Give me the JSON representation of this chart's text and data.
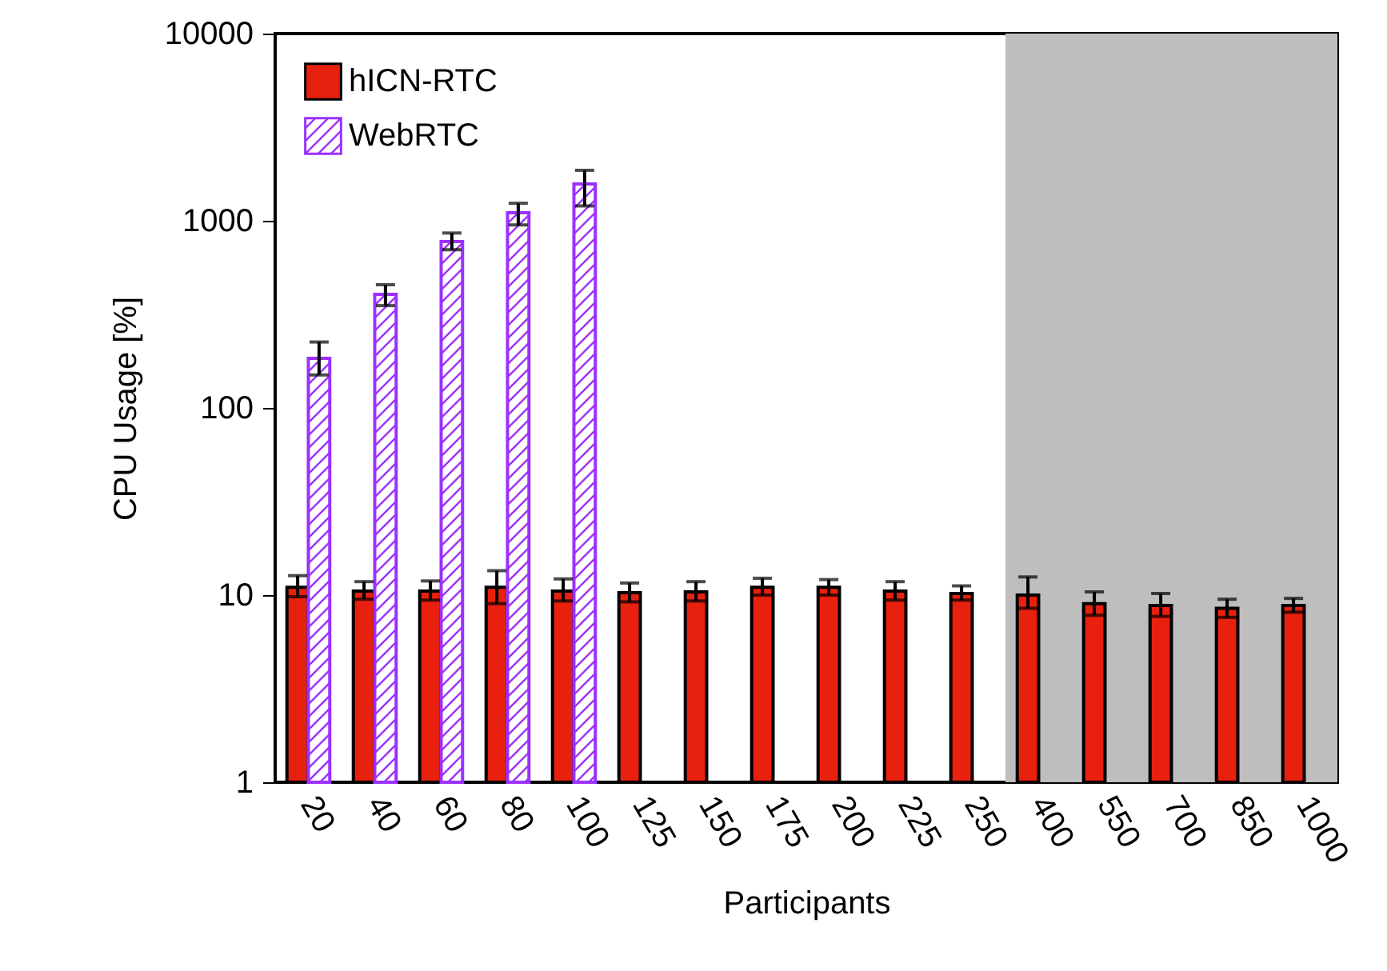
{
  "chart_data": {
    "type": "bar",
    "xlabel": "Participants",
    "ylabel": "CPU Usage [%]",
    "categories": [
      "20",
      "40",
      "60",
      "80",
      "100",
      "125",
      "150",
      "175",
      "200",
      "225",
      "250",
      "400",
      "550",
      "700",
      "850",
      "1000"
    ],
    "series": [
      {
        "name": "hICN-RTC",
        "color": "#e8200e",
        "values": [
          11,
          10.5,
          10.5,
          11,
          10.5,
          10.3,
          10.4,
          11,
          11,
          10.5,
          10.2,
          10,
          9,
          8.8,
          8.5,
          8.8
        ],
        "errors": [
          [
            9.8,
            12.7
          ],
          [
            9.5,
            11.8
          ],
          [
            9.4,
            11.9
          ],
          [
            9,
            13.5
          ],
          [
            9.3,
            12.2
          ],
          [
            9.2,
            11.6
          ],
          [
            9.3,
            11.8
          ],
          [
            10,
            12.3
          ],
          [
            10,
            12.1
          ],
          [
            9.4,
            11.8
          ],
          [
            9.4,
            11.2
          ],
          [
            8.5,
            12.5
          ],
          [
            7.8,
            10.4
          ],
          [
            7.7,
            10.2
          ],
          [
            7.6,
            9.5
          ],
          [
            8.1,
            9.6
          ]
        ]
      },
      {
        "name": "WebRTC",
        "color": "#9b30ff",
        "values": [
          184,
          404,
          774,
          1104,
          1573,
          null,
          null,
          null,
          null,
          null,
          null,
          null,
          null,
          null,
          null,
          null
        ],
        "errors": [
          [
            150,
            225
          ],
          [
            352,
            455
          ],
          [
            700,
            860
          ],
          [
            950,
            1240
          ],
          [
            1200,
            1860
          ],
          null,
          null,
          null,
          null,
          null,
          null,
          null,
          null,
          null,
          null,
          null
        ]
      }
    ],
    "ylim": [
      1,
      10000
    ],
    "yticks": [
      1,
      10,
      100,
      1000,
      10000
    ],
    "log": "y",
    "grid": false,
    "legend": "top left",
    "bands": [
      {
        "axis": "x",
        "from": "400",
        "to": "1000",
        "color": "#bebebe"
      }
    ]
  }
}
